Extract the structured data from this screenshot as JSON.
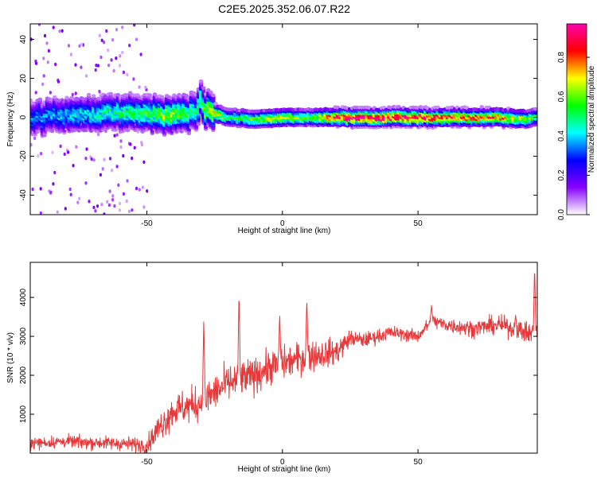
{
  "figure": {
    "title": "C2E5.2025.352.06.07.R22"
  },
  "chart_data": [
    {
      "type": "heatmap",
      "xlabel": "Height of straight line (km)",
      "ylabel": "Frequency (Hz)",
      "xlim": [
        -93,
        94
      ],
      "ylim": [
        -50,
        48
      ],
      "xticks": [
        -50,
        0,
        50
      ],
      "yticks": [
        -40,
        -20,
        0,
        20,
        40
      ],
      "grid": false,
      "colorbar": {
        "label": "Normalized spectral amplitude",
        "range": [
          0,
          0.97
        ],
        "ticks": [
          0.0,
          0.2,
          0.4,
          0.6,
          0.8
        ],
        "tick_labels": [
          "0.0",
          "0.2",
          "0.4",
          "0.6",
          "0.8"
        ],
        "colors": [
          "#ffffff",
          "#8800ff",
          "#0000ff",
          "#00ffff",
          "#00ff00",
          "#ffff00",
          "#ff0000",
          "#ff00aa"
        ]
      },
      "ridge": {
        "x": [
          -93,
          -80,
          -70,
          -60,
          -50,
          -40,
          -32,
          -30,
          -28,
          -24,
          -20,
          -10,
          0,
          10,
          20,
          30,
          40,
          50,
          60,
          70,
          80,
          90,
          94
        ],
        "frequency": [
          0,
          1,
          2,
          3,
          2,
          1,
          3,
          8,
          4,
          2,
          0,
          -1,
          0,
          0,
          0,
          0,
          0,
          0,
          0,
          0,
          0,
          -1,
          0
        ],
        "amplitude": [
          0.35,
          0.4,
          0.45,
          0.5,
          0.55,
          0.65,
          0.5,
          0.55,
          0.6,
          0.75,
          0.5,
          0.6,
          0.7,
          0.55,
          0.9,
          0.95,
          0.95,
          0.92,
          0.85,
          0.8,
          0.8,
          0.65,
          0.5
        ]
      }
    },
    {
      "type": "line",
      "xlabel": "Height of straight line (km)",
      "ylabel": "SNR (10 * v/v)",
      "xlim": [
        -93,
        94
      ],
      "ylim": [
        0,
        4900
      ],
      "xticks": [
        -50,
        0,
        50
      ],
      "yticks": [
        1000,
        2000,
        3000,
        4000
      ],
      "grid": false,
      "series": [
        {
          "color": "#e8383a",
          "envelope": {
            "x": [
              -93,
              -80,
              -60,
              -50,
              -45,
              -40,
              -30,
              -20,
              -10,
              -5,
              0,
              10,
              20,
              25,
              30,
              40,
              50,
              55,
              60,
              70,
              80,
              90,
              94
            ],
            "y": [
              250,
              300,
              250,
              200,
              700,
              1100,
              1300,
              1800,
              2000,
              2200,
              2300,
              2500,
              2600,
              2950,
              2900,
              3100,
              3000,
              3400,
              3300,
              3200,
              3300,
              3100,
              3000
            ],
            "noise": [
              140,
              150,
              160,
              200,
              350,
              400,
              450,
              450,
              430,
              420,
              400,
              380,
              320,
              200,
              180,
              160,
              150,
              170,
              180,
              200,
              220,
              260,
              350
            ]
          },
          "spikes": [
            {
              "x": -16,
              "y": 4200
            },
            {
              "x": 9,
              "y": 4000
            },
            {
              "x": 93,
              "y": 4850
            },
            {
              "x": -29,
              "y": 3450
            },
            {
              "x": -1,
              "y": 3600
            },
            {
              "x": 55,
              "y": 3800
            },
            {
              "x": 86,
              "y": 3550
            }
          ]
        }
      ]
    }
  ]
}
